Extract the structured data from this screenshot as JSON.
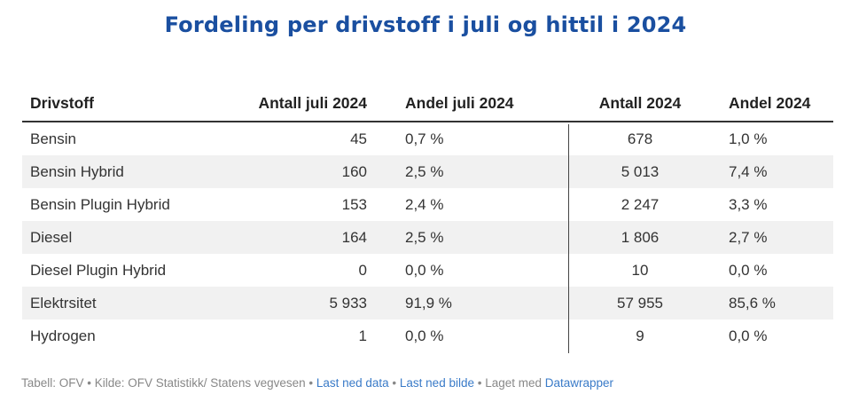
{
  "chart_data": {
    "type": "table",
    "title": "Fordeling per drivstoff i juli og hittil i 2024",
    "columns": [
      "Drivstoff",
      "Antall juli 2024",
      "Andel juli 2024",
      "Antall 2024",
      "Andel 2024"
    ],
    "rows": [
      {
        "fuel": "Bensin",
        "count_jul": "45",
        "share_jul": "0,7 %",
        "count_ytd": "678",
        "share_ytd": "1,0 %"
      },
      {
        "fuel": "Bensin Hybrid",
        "count_jul": "160",
        "share_jul": "2,5 %",
        "count_ytd": "5 013",
        "share_ytd": "7,4 %"
      },
      {
        "fuel": "Bensin Plugin Hybrid",
        "count_jul": "153",
        "share_jul": "2,4 %",
        "count_ytd": "2 247",
        "share_ytd": "3,3 %"
      },
      {
        "fuel": "Diesel",
        "count_jul": "164",
        "share_jul": "2,5 %",
        "count_ytd": "1 806",
        "share_ytd": "2,7 %"
      },
      {
        "fuel": "Diesel Plugin Hybrid",
        "count_jul": "0",
        "share_jul": "0,0 %",
        "count_ytd": "10",
        "share_ytd": "0,0 %"
      },
      {
        "fuel": "Elektrsitet",
        "count_jul": "5 933",
        "share_jul": "91,9 %",
        "count_ytd": "57 955",
        "share_ytd": "85,6 %"
      },
      {
        "fuel": "Hydrogen",
        "count_jul": "1",
        "share_jul": "0,0 %",
        "count_ytd": "9",
        "share_ytd": "0,0 %"
      }
    ]
  },
  "footer": {
    "prefix": "Tabell: OFV • Kilde: OFV Statistikk/ Statens vegvesen • ",
    "download_data": "Last ned data",
    "sep1": " • ",
    "download_image": "Last ned bilde",
    "sep2": " • Laget med ",
    "made_with": "Datawrapper"
  },
  "colors": {
    "title": "#1a4fa0",
    "link": "#3a7bc8",
    "row_alt": "#f1f1f1"
  }
}
